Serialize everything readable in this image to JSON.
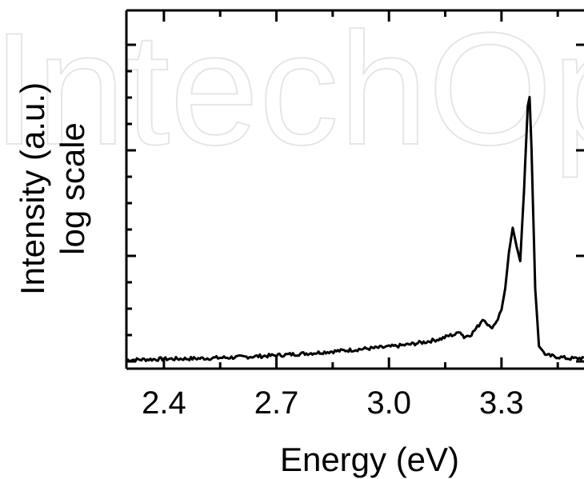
{
  "watermark": "IntechOpen",
  "chart_data": {
    "type": "line",
    "title": "",
    "xlabel": "Energy (eV)",
    "ylabel_lines": [
      "Intensity (a.u.)",
      "log scale"
    ],
    "xlim": [
      2.3,
      3.52
    ],
    "ylim": [
      0,
      1
    ],
    "y_scale": "log",
    "y_tick_labels": [],
    "x_ticks": [
      2.4,
      2.7,
      3.0,
      3.3
    ],
    "x_tick_labels": [
      "2.4",
      "2.7",
      "3.0",
      "3.3"
    ],
    "grid": false,
    "series": [
      {
        "color": "#000000",
        "x": [
          2.3,
          2.4,
          2.5,
          2.6,
          2.7,
          2.8,
          2.9,
          3.0,
          3.05,
          3.1,
          3.14,
          3.16,
          3.18,
          3.19,
          3.2,
          3.22,
          3.24,
          3.25,
          3.26,
          3.27,
          3.28,
          3.29,
          3.3,
          3.31,
          3.32,
          3.33,
          3.34,
          3.35,
          3.36,
          3.37,
          3.375,
          3.38,
          3.39,
          3.4,
          3.42,
          3.45,
          3.48,
          3.5,
          3.52
        ],
        "y": [
          0.005,
          0.008,
          0.01,
          0.014,
          0.02,
          0.028,
          0.038,
          0.048,
          0.055,
          0.065,
          0.075,
          0.085,
          0.09,
          0.1,
          0.08,
          0.09,
          0.12,
          0.14,
          0.13,
          0.11,
          0.12,
          0.14,
          0.17,
          0.24,
          0.36,
          0.44,
          0.38,
          0.33,
          0.56,
          0.84,
          0.87,
          0.7,
          0.24,
          0.05,
          0.02,
          0.015,
          0.01,
          0.01,
          0.012
        ]
      }
    ]
  }
}
